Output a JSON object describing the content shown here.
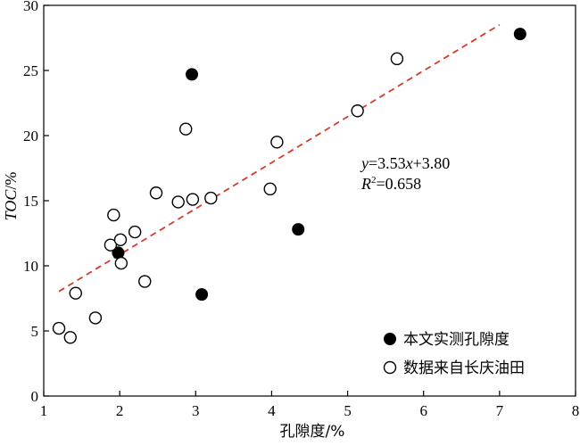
{
  "chart_data": {
    "type": "scatter",
    "xlabel": "孔隙度/%",
    "ylabel_italic": "TOC",
    "ylabel_suffix": "/%",
    "xlim": [
      1,
      8
    ],
    "ylim": [
      0,
      30
    ],
    "xticks": [
      1,
      2,
      3,
      4,
      5,
      6,
      7,
      8
    ],
    "yticks": [
      0,
      5,
      10,
      15,
      20,
      25,
      30
    ],
    "grid": false,
    "legend_position": "bottom-right",
    "series": [
      {
        "name": "本文实测孔隙度",
        "marker": "filled-circle",
        "color": "#000000",
        "points": [
          [
            2.95,
            24.7
          ],
          [
            7.27,
            27.8
          ],
          [
            1.98,
            11.0
          ],
          [
            4.35,
            12.8
          ],
          [
            3.08,
            7.8
          ]
        ]
      },
      {
        "name": "数据来自长庆油田",
        "marker": "open-circle",
        "color": "#000000",
        "points": [
          [
            1.2,
            5.2
          ],
          [
            1.35,
            4.5
          ],
          [
            1.42,
            7.9
          ],
          [
            1.68,
            6.0
          ],
          [
            1.88,
            11.6
          ],
          [
            1.92,
            13.9
          ],
          [
            2.01,
            12.0
          ],
          [
            2.02,
            10.2
          ],
          [
            2.2,
            12.6
          ],
          [
            2.33,
            8.8
          ],
          [
            2.48,
            15.6
          ],
          [
            2.77,
            14.9
          ],
          [
            2.87,
            20.5
          ],
          [
            2.96,
            15.1
          ],
          [
            3.2,
            15.2
          ],
          [
            3.98,
            15.9
          ],
          [
            4.07,
            19.5
          ],
          [
            5.13,
            21.9
          ],
          [
            5.65,
            25.9
          ]
        ]
      }
    ],
    "trendline": {
      "style": "dashed",
      "color": "#d63a2a",
      "slope": 3.53,
      "intercept": 3.8,
      "x_range": [
        1.2,
        7.0
      ]
    },
    "annotations": {
      "eq_y": "y",
      "eq_mid": "=3.53",
      "eq_x": "x",
      "eq_end": "+3.80",
      "r2_R": "R",
      "r2_sup": "2",
      "r2_val": "=0.658"
    }
  }
}
